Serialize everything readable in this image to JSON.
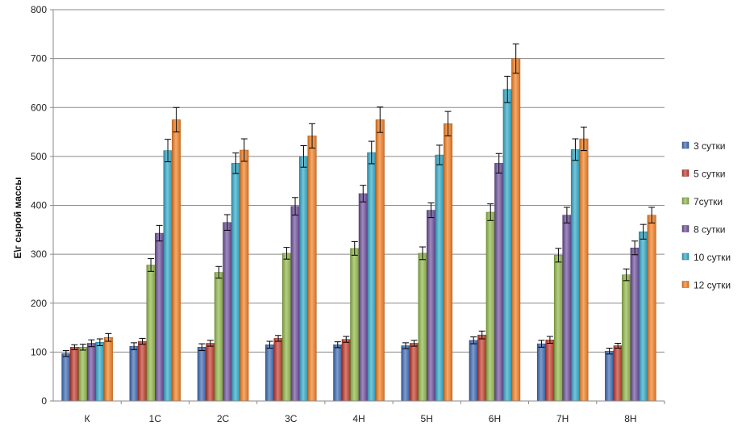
{
  "chart_data": {
    "type": "bar",
    "title": "",
    "xlabel": "",
    "ylabel": "Е\\г сырой массы",
    "ylim": [
      0,
      800
    ],
    "yticks": [
      0,
      100,
      200,
      300,
      400,
      500,
      600,
      700,
      800
    ],
    "grid": true,
    "legend_position": "right",
    "categories": [
      "К",
      "1С",
      "2С",
      "3С",
      "4Н",
      "5Н",
      "6Н",
      "7Н",
      "8Н"
    ],
    "series": [
      {
        "name": "3 сутки",
        "color": "#3a67b0",
        "values": [
          97,
          112,
          110,
          115,
          115,
          113,
          124,
          117,
          102
        ],
        "errors": [
          6,
          7,
          7,
          7,
          6,
          6,
          7,
          7,
          6
        ]
      },
      {
        "name": "5 сутки",
        "color": "#c0392b",
        "values": [
          110,
          122,
          118,
          128,
          126,
          118,
          135,
          125,
          113
        ],
        "errors": [
          5,
          6,
          6,
          6,
          6,
          6,
          8,
          7,
          5
        ]
      },
      {
        "name": "7сутки",
        "color": "#8db545",
        "values": [
          110,
          278,
          263,
          302,
          312,
          302,
          386,
          298,
          258
        ],
        "errors": [
          6,
          13,
          12,
          12,
          14,
          13,
          17,
          14,
          12
        ]
      },
      {
        "name": "8 сутки",
        "color": "#6b4c9a",
        "values": [
          118,
          343,
          365,
          398,
          424,
          390,
          486,
          380,
          313
        ],
        "errors": [
          7,
          16,
          16,
          18,
          17,
          15,
          20,
          16,
          14
        ]
      },
      {
        "name": "10 сутки",
        "color": "#2fa6c4",
        "values": [
          120,
          512,
          486,
          500,
          508,
          503,
          637,
          514,
          346
        ],
        "errors": [
          7,
          23,
          21,
          22,
          23,
          20,
          27,
          22,
          15
        ]
      },
      {
        "name": "12 сутки",
        "color": "#f07c1f",
        "values": [
          130,
          575,
          513,
          542,
          575,
          567,
          700,
          536,
          380
        ],
        "errors": [
          8,
          25,
          23,
          25,
          26,
          25,
          30,
          24,
          16
        ]
      }
    ]
  }
}
